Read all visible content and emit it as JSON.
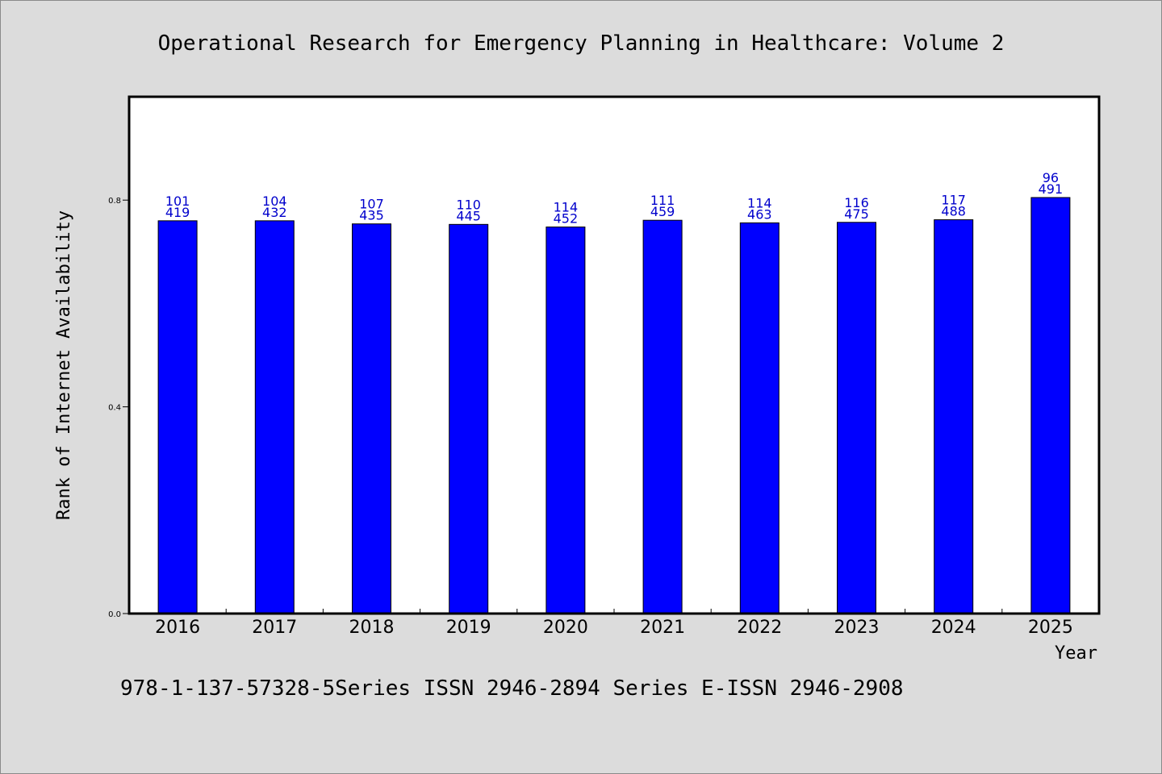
{
  "chart_data": {
    "type": "bar",
    "title": "Operational Research for Emergency Planning in Healthcare: Volume 2",
    "xlabel": "Year",
    "ylabel": "Rank of Internet Availability",
    "footer": "978-1-137-57328-5Series ISSN 2946-2894 Series E-ISSN 2946-2908",
    "categories": [
      "2016",
      "2017",
      "2018",
      "2019",
      "2020",
      "2021",
      "2022",
      "2023",
      "2024",
      "2025"
    ],
    "values": [
      0.76,
      0.76,
      0.754,
      0.753,
      0.748,
      0.761,
      0.756,
      0.757,
      0.762,
      0.805
    ],
    "labels_top": [
      "101",
      "104",
      "107",
      "110",
      "114",
      "111",
      "114",
      "116",
      "117",
      "96"
    ],
    "labels_bottom": [
      "419",
      "432",
      "435",
      "445",
      "452",
      "459",
      "463",
      "475",
      "488",
      "491"
    ],
    "ylim": [
      0,
      1.0
    ],
    "yticks": [
      0.0,
      0.4,
      0.8
    ],
    "ytick_labels": [
      "0.0",
      "0.4",
      "0.8"
    ],
    "grid": false,
    "bar_color": "#0000ff",
    "label_color": "#0000cc",
    "plot_background": "#ffffff",
    "page_background": "#dcdcdc"
  }
}
